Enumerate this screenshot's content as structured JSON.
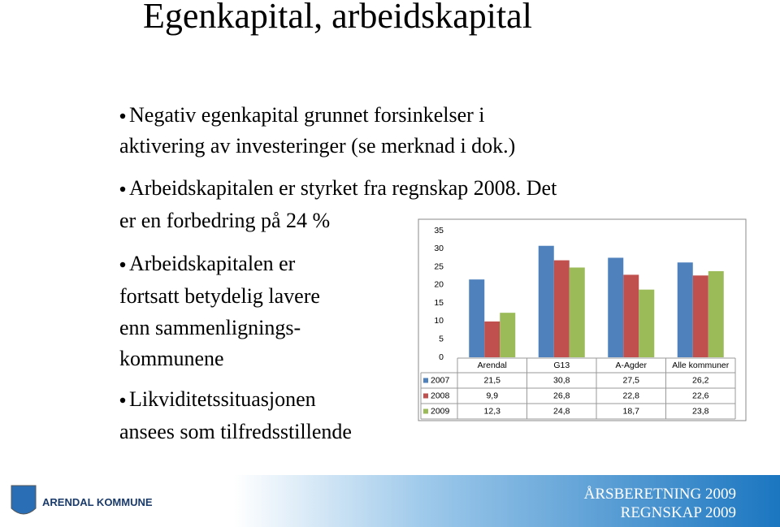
{
  "title": "Egenkapital, arbeidskapital",
  "bullets": [
    [
      "Negativ egenkapital grunnet forsinkelser i",
      "aktivering av investeringer  (se merknad i dok.)"
    ],
    [
      "Arbeidskapitalen er styrket fra regnskap 2008. Det",
      "er en forbedring på 24 %"
    ],
    [
      "Arbeidskapitalen er",
      "fortsatt betydelig lavere",
      "enn sammenlignings-",
      "kommunene"
    ],
    [
      "Likviditetssituasjonen",
      "ansees som tilfredsstillende"
    ]
  ],
  "logo_text": "ARENDAL KOMMUNE",
  "footer": [
    "ÅRSBERETNING 2009",
    "REGNSKAP 2009"
  ],
  "chart_data": {
    "type": "bar",
    "categories": [
      "Arendal",
      "G13",
      "A-Agder",
      "Alle kommuner"
    ],
    "series": [
      {
        "name": "2007",
        "color": "#4f81bd",
        "values": [
          21.5,
          30.8,
          27.5,
          26.2
        ],
        "value_labels": [
          "21,5",
          "30,8",
          "27,5",
          "26,2"
        ]
      },
      {
        "name": "2008",
        "color": "#c0504d",
        "values": [
          9.9,
          26.8,
          22.8,
          22.6
        ],
        "value_labels": [
          "9,9",
          "26,8",
          "22,8",
          "22,6"
        ]
      },
      {
        "name": "2009",
        "color": "#9bbb59",
        "values": [
          12.3,
          24.8,
          18.7,
          23.8
        ],
        "value_labels": [
          "12,3",
          "24,8",
          "18,7",
          "23,8"
        ]
      }
    ],
    "ylim": [
      0,
      35
    ],
    "yticks": [
      0,
      5,
      10,
      15,
      20,
      25,
      30,
      35
    ]
  }
}
